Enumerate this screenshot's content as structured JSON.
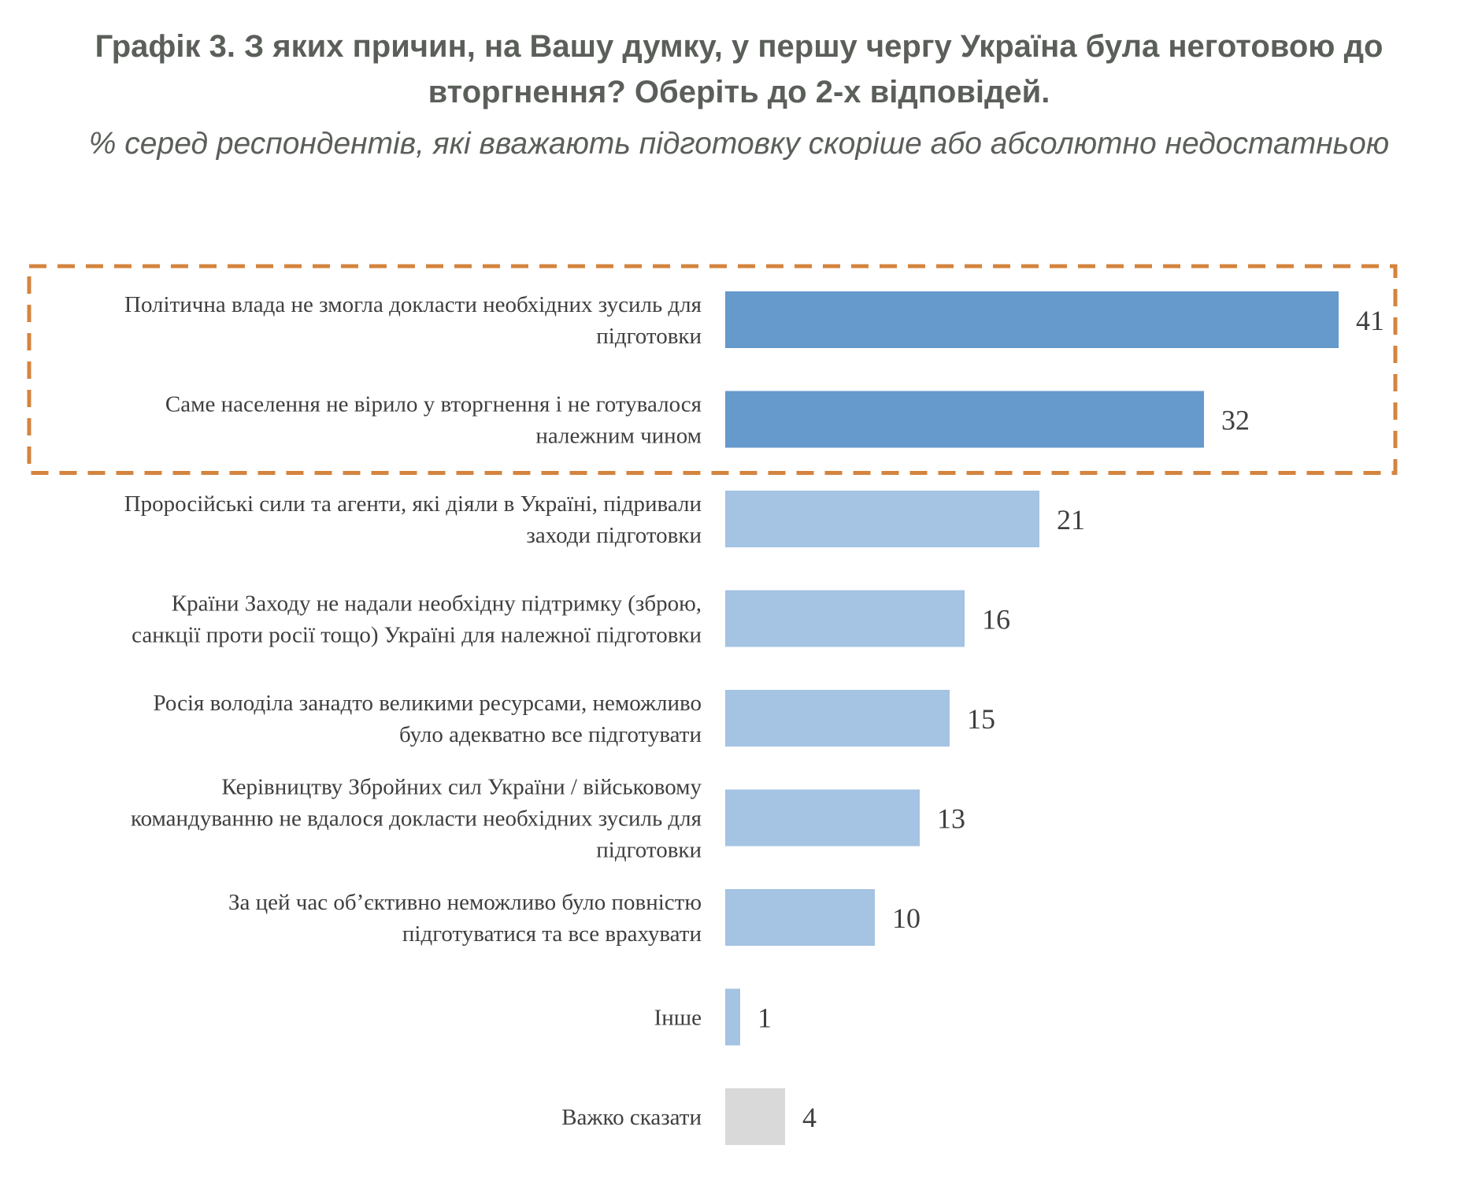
{
  "title": "Графік 3. З яких причин, на Вашу думку, у першу чергу Україна була неготовою до вторгнення? Оберіть до 2-х відповідей.",
  "subtitle": "% серед респондентів, які вважають підготовку скоріше або абсолютно недостатньою",
  "colors": {
    "highlight_bar": "#6699cc",
    "regular_bar": "#a5c3e2",
    "neutral_bar": "#d9d9d9",
    "highlight_box": "#d4843e",
    "text": "#3f3f3f"
  },
  "chart_data": {
    "type": "bar",
    "orientation": "horizontal",
    "categories": [
      [
        "Політична влада не змогла докласти необхідних зусиль для",
        "підготовки"
      ],
      [
        "Саме населення не вірило у вторгнення і не готувалося",
        "належним чином"
      ],
      [
        "Проросійські сили та агенти, які діяли в Україні, підривали",
        "заходи підготовки"
      ],
      [
        "Країни Заходу не надали необхідну підтримку (зброю,",
        "санкції проти росії тощо) Україні для належної підготовки"
      ],
      [
        "Росія володіла занадто великими ресурсами, неможливо",
        "було адекватно все підготувати"
      ],
      [
        "Керівництву Збройних сил України / військовому",
        "командуванню не вдалося докласти необхідних зусиль для",
        "підготовки"
      ],
      [
        "За цей час об’єктивно неможливо було повністю",
        "підготуватися та все врахувати"
      ],
      [
        "Інше"
      ],
      [
        "Важко сказати"
      ]
    ],
    "values": [
      41,
      32,
      21,
      16,
      15,
      13,
      10,
      1,
      4
    ],
    "bar_style": [
      "highlight",
      "highlight",
      "regular",
      "regular",
      "regular",
      "regular",
      "regular",
      "regular",
      "neutral"
    ],
    "highlighted_group": [
      0,
      1
    ],
    "data_labels": true,
    "grid": false,
    "legend": "none"
  }
}
